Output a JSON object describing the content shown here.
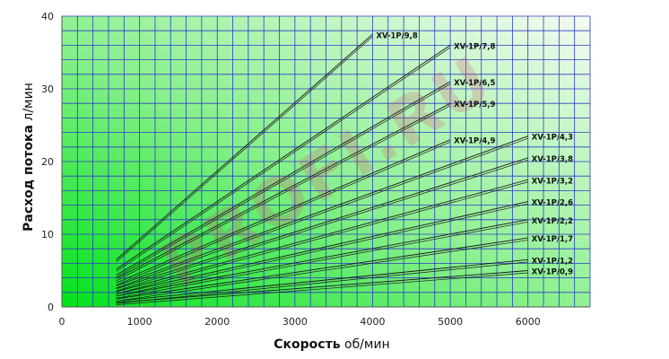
{
  "chart_data": {
    "type": "line",
    "xlabel_bold": "Скорость",
    "xlabel_unit": "об/мин",
    "ylabel_bold": "Расход потока",
    "ylabel_unit": "л/мин",
    "xlim": [
      0,
      6800
    ],
    "ylim": [
      0,
      40
    ],
    "x_ticks": [
      0,
      1000,
      2000,
      3000,
      4000,
      5000,
      6000
    ],
    "y_ticks": [
      0,
      10,
      20,
      30,
      40
    ],
    "grid": true,
    "watermark": "PROFI.RU",
    "series": [
      {
        "name": "XV-1P/9,8",
        "x": [
          700,
          4000
        ],
        "y": [
          6.5,
          37.5
        ]
      },
      {
        "name": "XV-1P/7,8",
        "x": [
          700,
          5000
        ],
        "y": [
          5.2,
          36
        ]
      },
      {
        "name": "XV-1P/6,5",
        "x": [
          700,
          5000
        ],
        "y": [
          4.4,
          31
        ]
      },
      {
        "name": "XV-1P/5,9",
        "x": [
          700,
          5000
        ],
        "y": [
          3.9,
          28
        ]
      },
      {
        "name": "XV-1P/4,9",
        "x": [
          700,
          5000
        ],
        "y": [
          3.3,
          23
        ]
      },
      {
        "name": "XV-1P/4,3",
        "x": [
          700,
          6000
        ],
        "y": [
          2.9,
          23.5
        ]
      },
      {
        "name": "XV-1P/3,8",
        "x": [
          700,
          6000
        ],
        "y": [
          2.5,
          20.5
        ]
      },
      {
        "name": "XV-1P/3,2",
        "x": [
          700,
          6000
        ],
        "y": [
          2.1,
          17.5
        ]
      },
      {
        "name": "XV-1P/2,6",
        "x": [
          700,
          6000
        ],
        "y": [
          1.8,
          14.5
        ]
      },
      {
        "name": "XV-1P/2,2",
        "x": [
          700,
          6000
        ],
        "y": [
          1.5,
          12
        ]
      },
      {
        "name": "XV-1P/1,7",
        "x": [
          700,
          6000
        ],
        "y": [
          1.1,
          9.5
        ]
      },
      {
        "name": "XV-1P/1,2",
        "x": [
          700,
          6000
        ],
        "y": [
          0.8,
          6.5
        ]
      },
      {
        "name": "XV-1P/0,9",
        "x": [
          700,
          6000
        ],
        "y": [
          0.6,
          5
        ]
      }
    ]
  }
}
